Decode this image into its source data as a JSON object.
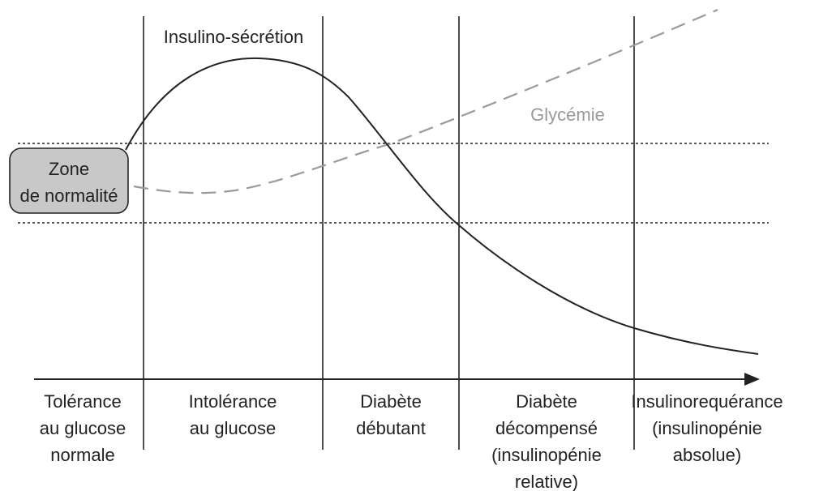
{
  "zone": {
    "lines": [
      "Zone",
      "de normalité"
    ]
  },
  "curves": {
    "insulin": "Insulino-sécrétion",
    "glycemia": "Glycémie"
  },
  "stages": [
    {
      "lines": [
        "Tolérance",
        "au glucose",
        "normale"
      ]
    },
    {
      "lines": [
        "Intolérance",
        "au glucose"
      ]
    },
    {
      "lines": [
        "Diabète",
        "débutant"
      ]
    },
    {
      "lines": [
        "Diabète",
        "décompensé",
        "(insulinopénie",
        "relative)"
      ]
    },
    {
      "lines": [
        "Insulinorequérance",
        "(insulinopénie",
        "absolue)"
      ]
    }
  ]
}
